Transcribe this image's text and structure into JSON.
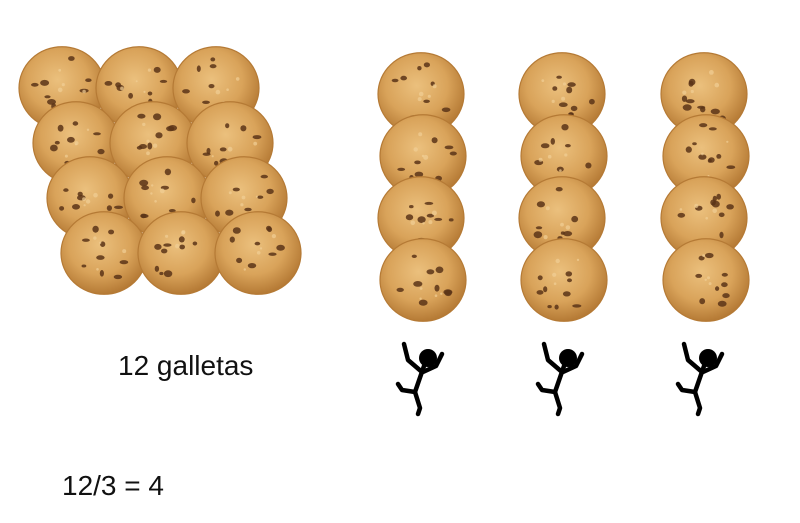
{
  "total_label": "12 galletas",
  "equation": "12/3 = 4",
  "total_cookies": 12,
  "groups": 3,
  "cookies_per_group": 4,
  "icons": {
    "cookie": "cookie-icon",
    "person": "stick-figure-icon"
  },
  "colors": {
    "cookie_base": "#d9a35a",
    "cookie_edge": "#b57a35",
    "chip": "#5a3418",
    "figure": "#000000",
    "text": "#111111"
  }
}
